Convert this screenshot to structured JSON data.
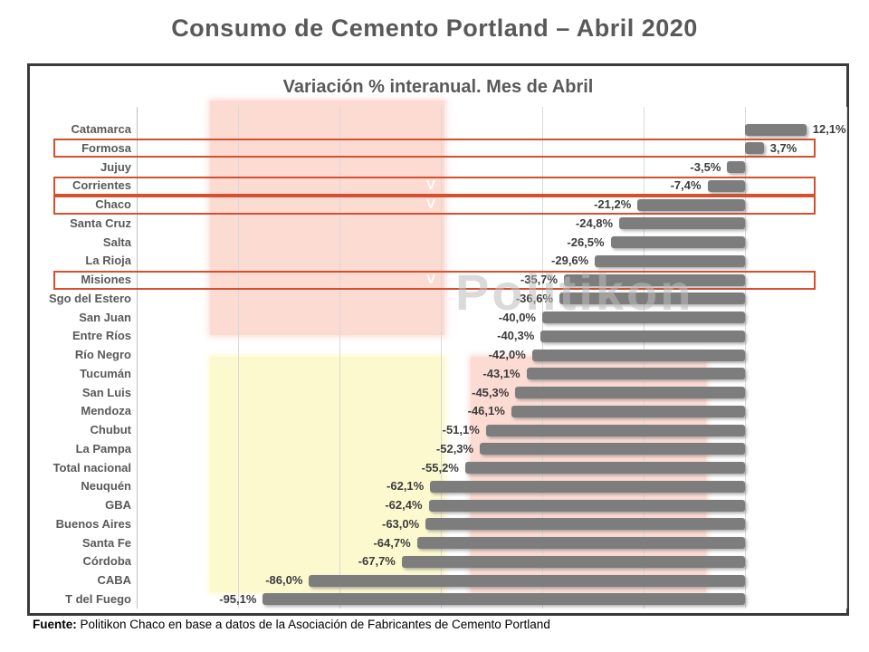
{
  "page_title": "Consumo de Cemento Portland – Abril 2020",
  "watermark": "Politikon",
  "source": {
    "label": "Fuente:",
    "text": " Politikon Chaco en base a datos de la Asociación de Fabricantes de Cemento Portland"
  },
  "colors": {
    "bar": "#7d7d7d",
    "highlight_box_border": "#d6502d",
    "region_pink": "#fbdbd2",
    "region_yellow": "#fdf9cf",
    "gridline": "#d9d9d9",
    "title_text": "#595959",
    "value_text": "#3c3c3c",
    "checkmark_text": "#ffffff"
  },
  "chart_data": {
    "type": "bar",
    "orientation": "horizontal",
    "title": "Variación % interanual. Mes de Abril",
    "xlabel": "",
    "ylabel": "",
    "xlim": [
      -120,
      20
    ],
    "gridline_step": 20,
    "grid": true,
    "legend": false,
    "categories": [
      "Catamarca",
      "Formosa",
      "Jujuy",
      "Corrientes",
      "Chaco",
      "Santa Cruz",
      "Salta",
      "La Rioja",
      "Misiones",
      "Sgo del Estero",
      "San Juan",
      "Entre Ríos",
      "Río Negro",
      "Tucumán",
      "San Luis",
      "Mendoza",
      "Chubut",
      "La Pampa",
      "Total nacional",
      "Neuquén",
      "GBA",
      "Buenos Aires",
      "Santa Fe",
      "Córdoba",
      "CABA",
      "T del Fuego"
    ],
    "values": [
      12.1,
      3.7,
      -3.5,
      -7.4,
      -21.2,
      -24.8,
      -26.5,
      -29.6,
      -35.7,
      -36.6,
      -40.0,
      -40.3,
      -42.0,
      -43.1,
      -45.3,
      -46.1,
      -51.1,
      -52.3,
      -55.2,
      -62.1,
      -62.4,
      -63.0,
      -64.7,
      -67.7,
      -86.0,
      -95.1
    ],
    "value_labels": [
      "12,1%",
      "3,7%",
      "-3,5%",
      "-7,4%",
      "-21,2%",
      "-24,8%",
      "-26,5%",
      "-29,6%",
      "-35,7%",
      "-36,6%",
      "-40,0%",
      "-40,3%",
      "-42,0%",
      "-43,1%",
      "-45,3%",
      "-46,1%",
      "-51,1%",
      "-52,3%",
      "-55,2%",
      "-62,1%",
      "-62,4%",
      "-63,0%",
      "-64,7%",
      "-67,7%",
      "-86,0%",
      "-95,1%"
    ],
    "highlighted_categories": [
      "Formosa",
      "Corrientes",
      "Chaco",
      "Misiones"
    ],
    "checkmark_categories": [
      "Corrientes",
      "Chaco",
      "Misiones"
    ],
    "checkmark_glyph": "V"
  }
}
